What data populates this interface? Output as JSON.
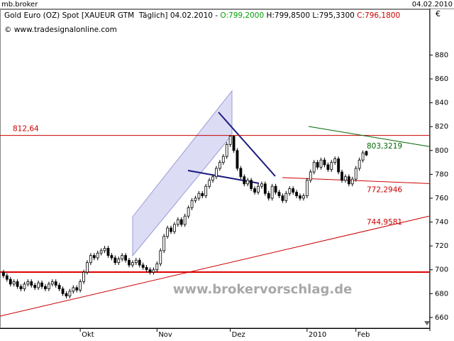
{
  "window_title": "mb.broker",
  "window_date": "04.02.2010",
  "chart_data": {
    "type": "candlestick",
    "title_parts": [
      {
        "text": "Gold Euro (OZ) Spot [XAUEUR GTM  Täglich] 04.02.2010 - ",
        "color": "#000000"
      },
      {
        "text": "O:799,2000",
        "color": "#00a000"
      },
      {
        "text": " H:799,8500",
        "color": "#000000"
      },
      {
        "text": " L:795,3300",
        "color": "#000000"
      },
      {
        "text": " C:796,1800",
        "color": "#cc0000"
      }
    ],
    "subtitle": "© www.tradesignalonline.com",
    "watermark": "www.brokervorschlag.de",
    "y_unit": "€",
    "ylim": [
      651,
      919
    ],
    "yticks": [
      660,
      680,
      700,
      720,
      740,
      760,
      780,
      800,
      820,
      840,
      860,
      880
    ],
    "xlim": [
      -1,
      122
    ],
    "xticks": [
      {
        "value": 22,
        "label": "Okt"
      },
      {
        "value": 44,
        "label": "Nov"
      },
      {
        "value": 65,
        "label": "Dez"
      },
      {
        "value": 87,
        "label": "2010"
      },
      {
        "value": 101,
        "label": "Feb"
      }
    ],
    "annotations": [
      {
        "value": 812.64,
        "label": "812,64",
        "color": "#cc0000"
      },
      {
        "value": 803.3219,
        "label": "803,3219",
        "color": "#006600"
      },
      {
        "value": 772.2946,
        "label": "772,2946",
        "color": "#cc0000"
      },
      {
        "value": 744.9581,
        "label": "744,9581",
        "color": "#cc0000"
      }
    ],
    "candles": [
      [
        698,
        700,
        693,
        695
      ],
      [
        695,
        697,
        690,
        692
      ],
      [
        692,
        694,
        686,
        688
      ],
      [
        688,
        692,
        686,
        690
      ],
      [
        690,
        692,
        684,
        686
      ],
      [
        686,
        688,
        682,
        684
      ],
      [
        684,
        690,
        682,
        688
      ],
      [
        688,
        692,
        686,
        690
      ],
      [
        690,
        692,
        685,
        687
      ],
      [
        687,
        689,
        683,
        685
      ],
      [
        685,
        691,
        683,
        689
      ],
      [
        689,
        691,
        684,
        686
      ],
      [
        686,
        688,
        682,
        684
      ],
      [
        684,
        690,
        682,
        688
      ],
      [
        688,
        692,
        686,
        690
      ],
      [
        690,
        692,
        685,
        687
      ],
      [
        687,
        689,
        682,
        684
      ],
      [
        684,
        686,
        678,
        680
      ],
      [
        680,
        682,
        676,
        678
      ],
      [
        678,
        684,
        676,
        682
      ],
      [
        682,
        687,
        680,
        685
      ],
      [
        685,
        687,
        681,
        683
      ],
      [
        683,
        692,
        681,
        690
      ],
      [
        690,
        700,
        688,
        698
      ],
      [
        698,
        708,
        696,
        706
      ],
      [
        706,
        714,
        704,
        712
      ],
      [
        712,
        714,
        708,
        710
      ],
      [
        710,
        716,
        708,
        714
      ],
      [
        714,
        718,
        712,
        716
      ],
      [
        716,
        720,
        714,
        718
      ],
      [
        718,
        720,
        710,
        712
      ],
      [
        712,
        714,
        708,
        710
      ],
      [
        710,
        712,
        704,
        706
      ],
      [
        706,
        711,
        704,
        709
      ],
      [
        709,
        714,
        707,
        712
      ],
      [
        712,
        714,
        706,
        708
      ],
      [
        708,
        710,
        702,
        704
      ],
      [
        704,
        708,
        702,
        706
      ],
      [
        706,
        710,
        704,
        708
      ],
      [
        708,
        710,
        702,
        704
      ],
      [
        704,
        706,
        700,
        702
      ],
      [
        702,
        704,
        698,
        700
      ],
      [
        700,
        702,
        696,
        698
      ],
      [
        698,
        702,
        696,
        700
      ],
      [
        700,
        707,
        698,
        705
      ],
      [
        705,
        718,
        703,
        716
      ],
      [
        716,
        730,
        714,
        728
      ],
      [
        728,
        737,
        726,
        735
      ],
      [
        735,
        737,
        730,
        732
      ],
      [
        732,
        740,
        730,
        738
      ],
      [
        738,
        744,
        736,
        742
      ],
      [
        742,
        744,
        736,
        738
      ],
      [
        738,
        747,
        736,
        745
      ],
      [
        745,
        754,
        743,
        752
      ],
      [
        752,
        760,
        750,
        758
      ],
      [
        758,
        762,
        756,
        760
      ],
      [
        760,
        766,
        758,
        764
      ],
      [
        764,
        766,
        760,
        762
      ],
      [
        762,
        772,
        760,
        770
      ],
      [
        770,
        777,
        768,
        775
      ],
      [
        775,
        780,
        773,
        778
      ],
      [
        778,
        787,
        776,
        785
      ],
      [
        785,
        792,
        783,
        790
      ],
      [
        790,
        797,
        788,
        795
      ],
      [
        795,
        807,
        793,
        805
      ],
      [
        805,
        812.64,
        803,
        812
      ],
      [
        812,
        812.5,
        798,
        800
      ],
      [
        800,
        802,
        783,
        785
      ],
      [
        785,
        787,
        776,
        778
      ],
      [
        778,
        780,
        770,
        772
      ],
      [
        772,
        777,
        770,
        775
      ],
      [
        775,
        777,
        766,
        768
      ],
      [
        768,
        770,
        763,
        765
      ],
      [
        765,
        772,
        763,
        770
      ],
      [
        770,
        774,
        768,
        772
      ],
      [
        772,
        774,
        762,
        764
      ],
      [
        764,
        766,
        758,
        760
      ],
      [
        760,
        772,
        758,
        770
      ],
      [
        770,
        772,
        763,
        765
      ],
      [
        765,
        767,
        760,
        762
      ],
      [
        762,
        764,
        756,
        758
      ],
      [
        758,
        766,
        756,
        764
      ],
      [
        764,
        770,
        762,
        768
      ],
      [
        768,
        770,
        763,
        765
      ],
      [
        765,
        767,
        760,
        762
      ],
      [
        762,
        764,
        758,
        760
      ],
      [
        760,
        764,
        758,
        762
      ],
      [
        762,
        777,
        760,
        775
      ],
      [
        775,
        784,
        773,
        782
      ],
      [
        782,
        792,
        780,
        790
      ],
      [
        790,
        792,
        784,
        786
      ],
      [
        786,
        794,
        784,
        792
      ],
      [
        792,
        794,
        786,
        788
      ],
      [
        788,
        790,
        782,
        784
      ],
      [
        784,
        792,
        782,
        790
      ],
      [
        790,
        795,
        788,
        793
      ],
      [
        793,
        795,
        780,
        782
      ],
      [
        782,
        784,
        773,
        775
      ],
      [
        775,
        780,
        773,
        778
      ],
      [
        778,
        780,
        770,
        772
      ],
      [
        772,
        778,
        770,
        776
      ],
      [
        776,
        787,
        774,
        785
      ],
      [
        785,
        794,
        783,
        792
      ],
      [
        792,
        800,
        790,
        798
      ],
      [
        799.2,
        799.85,
        795.33,
        796.18
      ]
    ]
  }
}
